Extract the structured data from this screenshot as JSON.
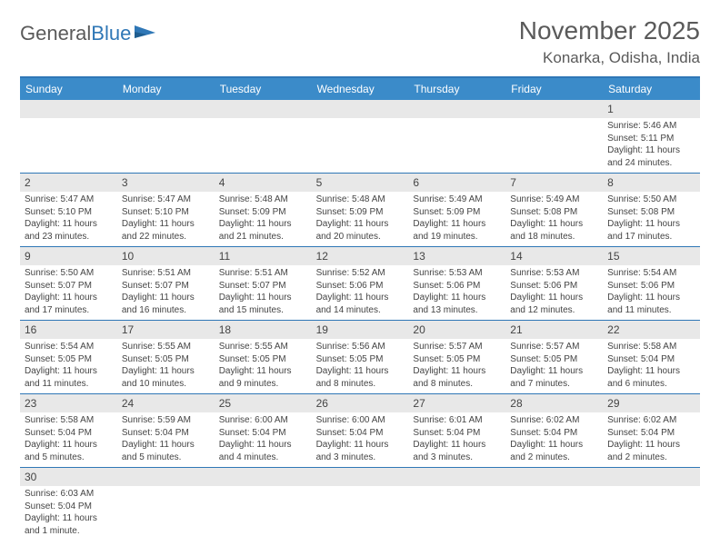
{
  "brand": {
    "word1": "General",
    "word2": "Blue"
  },
  "title": "November 2025",
  "location": "Konarka, Odisha, India",
  "colors": {
    "header_bg": "#3b8bc9",
    "border": "#2f77b6",
    "daynum_bg": "#e8e8e8",
    "text": "#444444",
    "title_text": "#5a5a5a"
  },
  "weekdays": [
    "Sunday",
    "Monday",
    "Tuesday",
    "Wednesday",
    "Thursday",
    "Friday",
    "Saturday"
  ],
  "weeks": [
    [
      null,
      null,
      null,
      null,
      null,
      null,
      {
        "n": "1",
        "sr": "5:46 AM",
        "ss": "5:11 PM",
        "dl": "11 hours and 24 minutes."
      }
    ],
    [
      {
        "n": "2",
        "sr": "5:47 AM",
        "ss": "5:10 PM",
        "dl": "11 hours and 23 minutes."
      },
      {
        "n": "3",
        "sr": "5:47 AM",
        "ss": "5:10 PM",
        "dl": "11 hours and 22 minutes."
      },
      {
        "n": "4",
        "sr": "5:48 AM",
        "ss": "5:09 PM",
        "dl": "11 hours and 21 minutes."
      },
      {
        "n": "5",
        "sr": "5:48 AM",
        "ss": "5:09 PM",
        "dl": "11 hours and 20 minutes."
      },
      {
        "n": "6",
        "sr": "5:49 AM",
        "ss": "5:09 PM",
        "dl": "11 hours and 19 minutes."
      },
      {
        "n": "7",
        "sr": "5:49 AM",
        "ss": "5:08 PM",
        "dl": "11 hours and 18 minutes."
      },
      {
        "n": "8",
        "sr": "5:50 AM",
        "ss": "5:08 PM",
        "dl": "11 hours and 17 minutes."
      }
    ],
    [
      {
        "n": "9",
        "sr": "5:50 AM",
        "ss": "5:07 PM",
        "dl": "11 hours and 17 minutes."
      },
      {
        "n": "10",
        "sr": "5:51 AM",
        "ss": "5:07 PM",
        "dl": "11 hours and 16 minutes."
      },
      {
        "n": "11",
        "sr": "5:51 AM",
        "ss": "5:07 PM",
        "dl": "11 hours and 15 minutes."
      },
      {
        "n": "12",
        "sr": "5:52 AM",
        "ss": "5:06 PM",
        "dl": "11 hours and 14 minutes."
      },
      {
        "n": "13",
        "sr": "5:53 AM",
        "ss": "5:06 PM",
        "dl": "11 hours and 13 minutes."
      },
      {
        "n": "14",
        "sr": "5:53 AM",
        "ss": "5:06 PM",
        "dl": "11 hours and 12 minutes."
      },
      {
        "n": "15",
        "sr": "5:54 AM",
        "ss": "5:06 PM",
        "dl": "11 hours and 11 minutes."
      }
    ],
    [
      {
        "n": "16",
        "sr": "5:54 AM",
        "ss": "5:05 PM",
        "dl": "11 hours and 11 minutes."
      },
      {
        "n": "17",
        "sr": "5:55 AM",
        "ss": "5:05 PM",
        "dl": "11 hours and 10 minutes."
      },
      {
        "n": "18",
        "sr": "5:55 AM",
        "ss": "5:05 PM",
        "dl": "11 hours and 9 minutes."
      },
      {
        "n": "19",
        "sr": "5:56 AM",
        "ss": "5:05 PM",
        "dl": "11 hours and 8 minutes."
      },
      {
        "n": "20",
        "sr": "5:57 AM",
        "ss": "5:05 PM",
        "dl": "11 hours and 8 minutes."
      },
      {
        "n": "21",
        "sr": "5:57 AM",
        "ss": "5:05 PM",
        "dl": "11 hours and 7 minutes."
      },
      {
        "n": "22",
        "sr": "5:58 AM",
        "ss": "5:04 PM",
        "dl": "11 hours and 6 minutes."
      }
    ],
    [
      {
        "n": "23",
        "sr": "5:58 AM",
        "ss": "5:04 PM",
        "dl": "11 hours and 5 minutes."
      },
      {
        "n": "24",
        "sr": "5:59 AM",
        "ss": "5:04 PM",
        "dl": "11 hours and 5 minutes."
      },
      {
        "n": "25",
        "sr": "6:00 AM",
        "ss": "5:04 PM",
        "dl": "11 hours and 4 minutes."
      },
      {
        "n": "26",
        "sr": "6:00 AM",
        "ss": "5:04 PM",
        "dl": "11 hours and 3 minutes."
      },
      {
        "n": "27",
        "sr": "6:01 AM",
        "ss": "5:04 PM",
        "dl": "11 hours and 3 minutes."
      },
      {
        "n": "28",
        "sr": "6:02 AM",
        "ss": "5:04 PM",
        "dl": "11 hours and 2 minutes."
      },
      {
        "n": "29",
        "sr": "6:02 AM",
        "ss": "5:04 PM",
        "dl": "11 hours and 2 minutes."
      }
    ],
    [
      {
        "n": "30",
        "sr": "6:03 AM",
        "ss": "5:04 PM",
        "dl": "11 hours and 1 minute."
      },
      null,
      null,
      null,
      null,
      null,
      null
    ]
  ],
  "labels": {
    "sunrise": "Sunrise:",
    "sunset": "Sunset:",
    "daylight": "Daylight:"
  }
}
